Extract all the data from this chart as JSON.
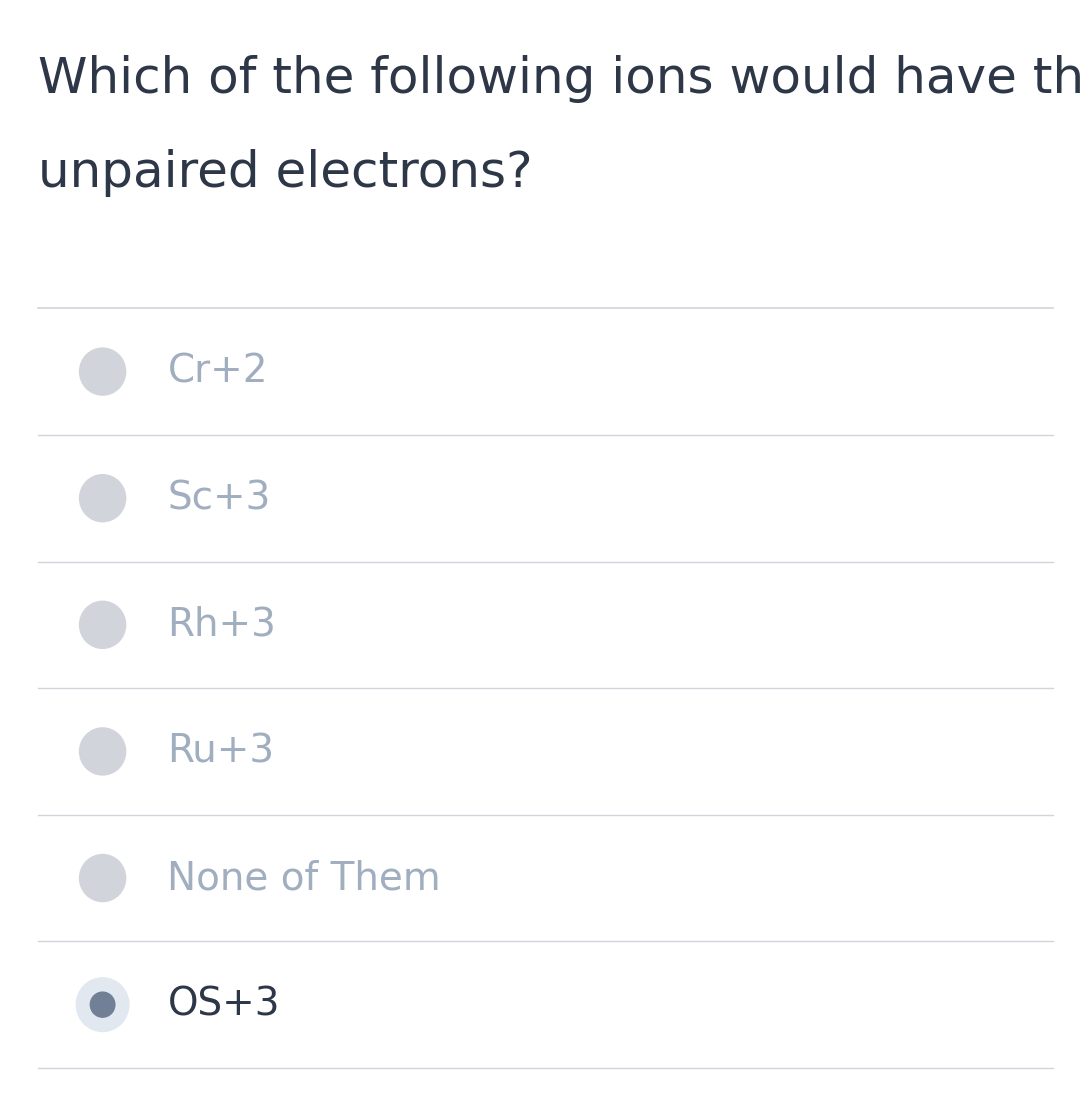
{
  "question_line1": "Which of the following ions would have three",
  "question_line2": "unpaired electrons?",
  "options": [
    "Cr+2",
    "Sc+3",
    "Rh+3",
    "Ru+3",
    "None of Them",
    "OS+3"
  ],
  "selected_index": 5,
  "bg_color": "#ffffff",
  "question_color": "#2d3748",
  "option_color_unselected": "#a0aec0",
  "option_color_selected": "#2d3748",
  "separator_color": "#d1d5db",
  "radio_fill_unselected": "#d1d5db",
  "radio_fill_selected_outer": "#e2e8f0",
  "radio_fill_selected_inner": "#718096",
  "question_fontsize": 36,
  "option_fontsize": 28,
  "fig_width": 10.8,
  "fig_height": 11.01
}
